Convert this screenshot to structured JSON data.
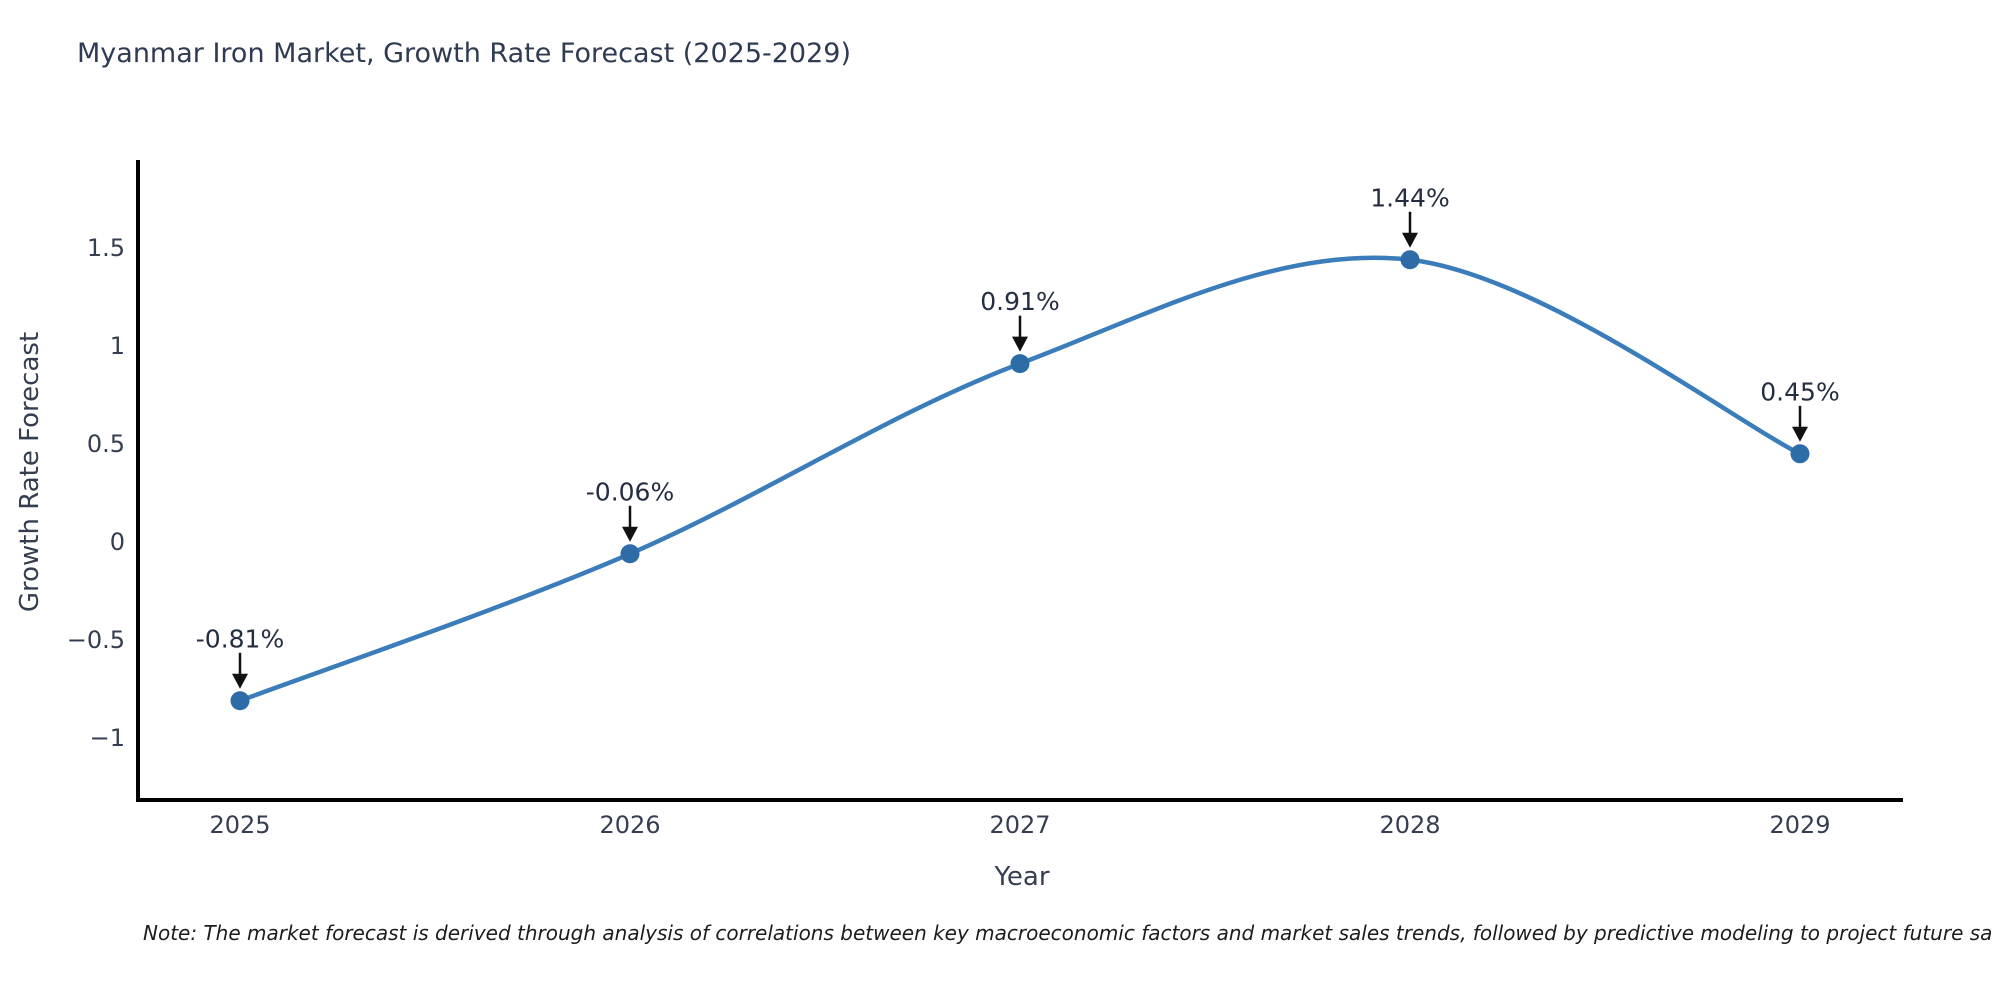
{
  "title": "Myanmar Iron Market, Growth Rate Forecast (2025-2029)",
  "footnote": "Note: The market forecast is derived through analysis of correlations between key macroeconomic factors and market sales trends, followed by predictive modeling to project future sa",
  "chart_data": {
    "type": "line",
    "line_shape": "spline",
    "title": "Myanmar Iron Market, Growth Rate Forecast (2025-2029)",
    "xlabel": "Year",
    "ylabel": "Growth Rate Forecast",
    "x": [
      2025,
      2026,
      2027,
      2028,
      2029
    ],
    "values": [
      -0.81,
      -0.06,
      0.91,
      1.44,
      0.45
    ],
    "point_labels": [
      "-0.81%",
      "-0.06%",
      "0.91%",
      "1.44%",
      "0.45%"
    ],
    "x_tick_labels": [
      "2025",
      "2026",
      "2027",
      "2028",
      "2029"
    ],
    "y_ticks": [
      {
        "value": 1.5,
        "label": "1.5"
      },
      {
        "value": 1.0,
        "label": "1"
      },
      {
        "value": 0.5,
        "label": "0.5"
      },
      {
        "value": 0.0,
        "label": "0"
      },
      {
        "value": -0.5,
        "label": "−0.5"
      },
      {
        "value": -1.0,
        "label": "−1"
      }
    ],
    "ylim": [
      -1.31,
      1.95
    ],
    "xlim": [
      2024.74,
      2029.27
    ],
    "grid": false,
    "legend": "none",
    "colors": {
      "line": "#3b7cba",
      "marker": "#2e6ca8",
      "arrow": "#111111",
      "spine": "#000000",
      "text": "#2e3b52"
    }
  }
}
